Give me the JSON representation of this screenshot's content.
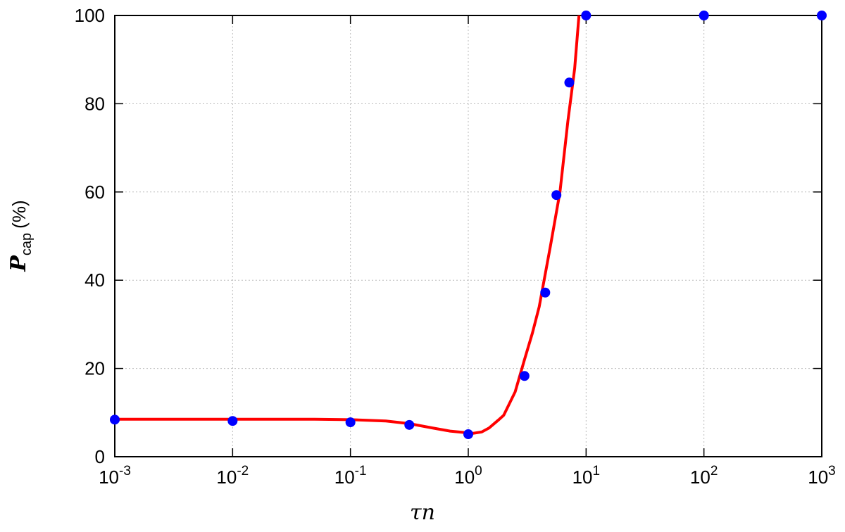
{
  "chart_data": {
    "type": "scatter",
    "xlabel": "τn",
    "ylabel": {
      "main": "P",
      "sub": "cap",
      "unit": "(%)"
    },
    "xscale": "log",
    "xlim": [
      0.001,
      1000
    ],
    "xticks": [
      {
        "value": 0.001,
        "label": "10",
        "exponent": "-3"
      },
      {
        "value": 0.01,
        "label": "10",
        "exponent": "-2"
      },
      {
        "value": 0.1,
        "label": "10",
        "exponent": "-1"
      },
      {
        "value": 1,
        "label": "10",
        "exponent": "0"
      },
      {
        "value": 10,
        "label": "10",
        "exponent": "1"
      },
      {
        "value": 100,
        "label": "10",
        "exponent": "2"
      },
      {
        "value": 1000,
        "label": "10",
        "exponent": "3"
      }
    ],
    "ylim": [
      0,
      100
    ],
    "yticks": [
      0,
      20,
      40,
      60,
      80,
      100
    ],
    "grid": true,
    "series": [
      {
        "type": "line",
        "color": "#ff0000",
        "x": [
          0.001,
          0.01,
          0.05,
          0.1,
          0.2,
          0.316,
          0.5,
          0.7,
          1,
          1.1,
          1.3,
          1.5,
          1.8,
          2,
          2.5,
          3,
          3.5,
          4,
          5,
          6,
          7,
          8,
          8.7
        ],
        "values": [
          8.5,
          8.5,
          8.5,
          8.4,
          8.1,
          7.5,
          6.5,
          5.8,
          5.4,
          5.3,
          5.6,
          6.5,
          8.3,
          9.4,
          14.7,
          22,
          28,
          34,
          48,
          60,
          76,
          88,
          100
        ]
      },
      {
        "type": "scatter",
        "color": "#0000ff",
        "x": [
          0.001,
          0.01,
          0.1,
          0.316,
          1,
          3,
          4.5,
          5.6,
          7.2,
          10,
          100,
          1000
        ],
        "values": [
          8.4,
          8.1,
          7.8,
          7.2,
          5.1,
          18.3,
          37.2,
          59.3,
          84.8,
          100,
          100,
          100
        ]
      }
    ]
  }
}
